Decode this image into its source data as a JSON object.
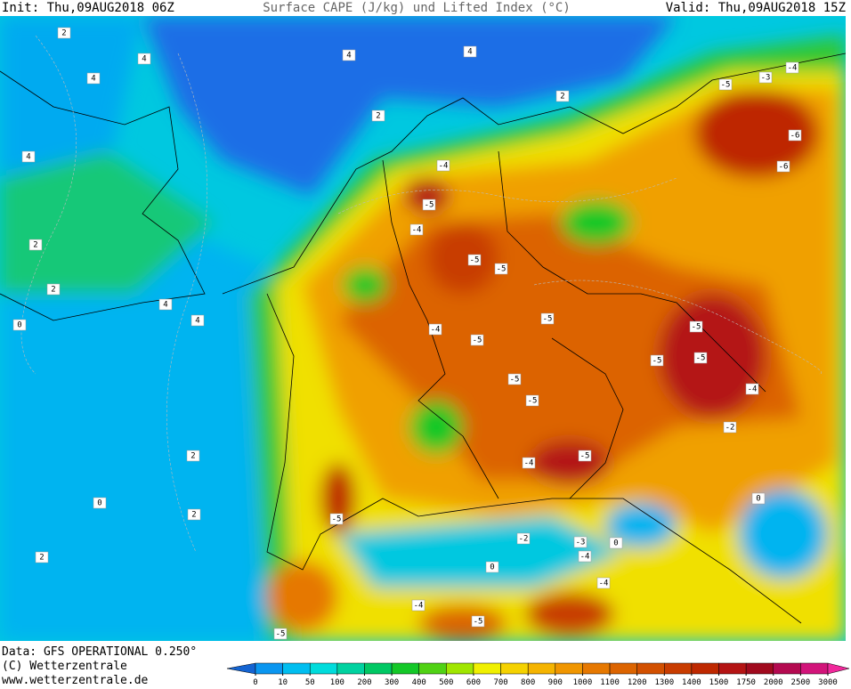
{
  "header": {
    "init": "Init: Thu,09AUG2018 06Z",
    "title": "Surface CAPE (J/kg) und Lifted Index (°C)",
    "valid": "Valid: Thu,09AUG2018 15Z"
  },
  "footer": {
    "source": "Data: GFS OPERATIONAL 0.250°",
    "copyright": "(C) Wetterzentrale",
    "url": "www.wetterzentrale.de"
  },
  "colorbar": {
    "ticks": [
      0,
      10,
      50,
      100,
      200,
      300,
      400,
      500,
      600,
      700,
      800,
      900,
      1000,
      1100,
      1200,
      1300,
      1400,
      1500,
      1750,
      2000,
      2500,
      3000
    ],
    "colors": [
      "#1464d2",
      "#0a96f0",
      "#00bef0",
      "#00dcdc",
      "#00d2a0",
      "#00c864",
      "#14c828",
      "#50d214",
      "#a0e600",
      "#f0f000",
      "#f5d200",
      "#f5b400",
      "#f09600",
      "#e67800",
      "#dc6400",
      "#d25000",
      "#c83c00",
      "#be2800",
      "#b41414",
      "#a00a1e",
      "#b40a50",
      "#d2147a",
      "#f0289b"
    ]
  },
  "contour_labels": [
    "2",
    "4",
    "4",
    "4",
    "2",
    "4",
    "2",
    "4",
    "2",
    "2",
    "4",
    "4",
    "0",
    "2",
    "2",
    "0",
    "2",
    "-4",
    "-5",
    "-4",
    "-5",
    "-5",
    "-5",
    "-4",
    "-5",
    "-5",
    "-5",
    "-5",
    "-4",
    "-5",
    "-6",
    "-6",
    "-5",
    "-3",
    "-4",
    "-5",
    "-5",
    "-5",
    "-4",
    "-2",
    "-4",
    "-4",
    "-5",
    "-4",
    "-5",
    "0",
    "0",
    "0",
    "-2",
    "-3"
  ]
}
